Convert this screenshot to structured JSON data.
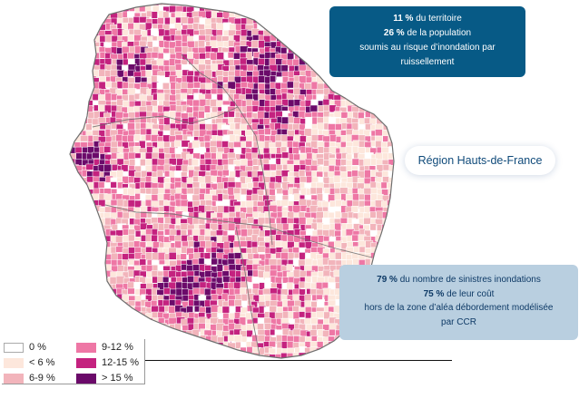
{
  "region_label": "Région Hauts-de-France",
  "stats_top": {
    "line1_value": "11 %",
    "line1_text": " du territoire",
    "line2_value": "26 %",
    "line2_text": " de la population",
    "line3_text": "soumis au risque d’inondation par",
    "line4_text": "ruissellement"
  },
  "stats_bottom": {
    "line1_value": "79 %",
    "line1_text": " du nombre de sinistres inondations",
    "line2_value": "75 %",
    "line2_text": " de leur coût",
    "line3_text": "hors de la zone d’aléa débordement modélisée",
    "line4_text": "par CCR"
  },
  "legend": [
    {
      "label": "0 %",
      "color": "#ffffff"
    },
    {
      "label": "< 6 %",
      "color": "#fde7dc"
    },
    {
      "label": "6-9 %",
      "color": "#f2b4bb"
    },
    {
      "label": "9-12 %",
      "color": "#ee77a5"
    },
    {
      "label": "12-15 %",
      "color": "#c4227f"
    },
    {
      "label": "> 15 %",
      "color": "#6b0a6a"
    }
  ],
  "colors": {
    "card_top_bg": "#075a86",
    "card_bottom_bg": "#b9cfe0",
    "boundary": "#666666"
  }
}
